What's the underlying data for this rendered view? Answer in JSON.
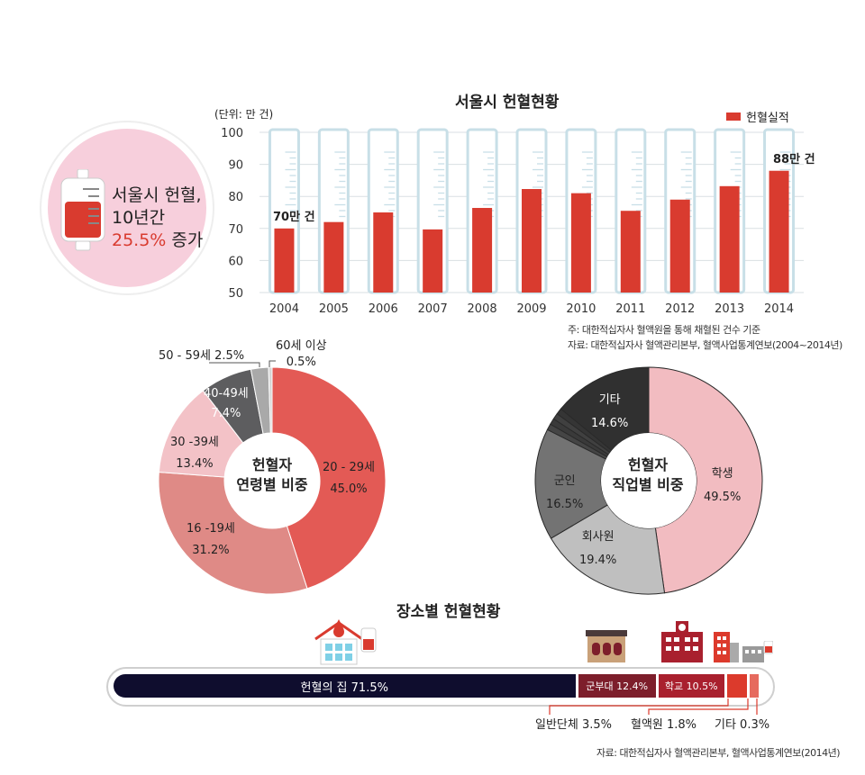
{
  "badge": {
    "line1": "서울시 헌혈,",
    "line2": "10년간",
    "pct": "25.5%",
    "suffix": " 증가"
  },
  "colors": {
    "red": "#d93b2f",
    "pink_circle": "#f7cfdc",
    "navy": "#0f0d2e"
  },
  "chart_data": [
    {
      "type": "bar",
      "title": "서울시 헌혈현황",
      "unit_label": "(단위: 만 건)",
      "legend": [
        "헌혈실적"
      ],
      "legend_position": "top-right",
      "categories": [
        "2004",
        "2005",
        "2006",
        "2007",
        "2008",
        "2009",
        "2010",
        "2011",
        "2012",
        "2013",
        "2014"
      ],
      "values": [
        70,
        72,
        75,
        69.7,
        76.4,
        82.3,
        81,
        75.5,
        79,
        83.2,
        88
      ],
      "yticks": [
        "100",
        "90",
        "80",
        "70",
        "60",
        "50"
      ],
      "ylim": [
        50,
        100
      ],
      "annotations": [
        "70만 건",
        "88만 건"
      ],
      "notes": [
        "주: 대한적십자사 혈액원을 통해 채혈된 건수 기준",
        "자료: 대한적십자사 혈액관리본부, 혈액사업통계연보(2004~2014년)"
      ]
    },
    {
      "type": "pie",
      "title": "헌혈자 연령별 비중",
      "title_lines": [
        "헌혈자",
        "연령별 비중"
      ],
      "slices": [
        {
          "label": "20 - 29세",
          "value": "45.0%",
          "v": 45.0,
          "color": "#e35a55"
        },
        {
          "label": "16 -19세",
          "value": "31.2%",
          "v": 31.2,
          "color": "#df8a86"
        },
        {
          "label": "30 -39세",
          "value": "13.4%",
          "v": 13.4,
          "color": "#f3c2c7"
        },
        {
          "label": "40-49세",
          "value": "7.4%",
          "v": 7.4,
          "color": "#5d5d5f"
        },
        {
          "label": "50 - 59세 2.5%",
          "value": "",
          "v": 2.5,
          "color": "#a9a9a9"
        },
        {
          "label": "60세 이상",
          "value": "0.5%",
          "v": 0.5,
          "color": "#d6d6d6"
        }
      ]
    },
    {
      "type": "pie",
      "title": "헌혈자 직업별 비중",
      "title_lines": [
        "헌혈자",
        "직업별 비중"
      ],
      "slices": [
        {
          "label": "학생",
          "value": "49.5%",
          "v": 49.5,
          "color": "#f2bcc1"
        },
        {
          "label": "회사원",
          "value": "19.4%",
          "v": 19.4,
          "color": "#bfbfbf"
        },
        {
          "label": "군인",
          "value": "16.5%",
          "v": 16.5,
          "color": "#737373"
        },
        {
          "label": "",
          "value": "",
          "v": 0.9,
          "color": "#454545"
        },
        {
          "label": "",
          "value": "",
          "v": 0.9,
          "color": "#3a3a3a"
        },
        {
          "label": "",
          "value": "",
          "v": 0.9,
          "color": "#404040"
        },
        {
          "label": "",
          "value": "",
          "v": 0.9,
          "color": "#353535"
        },
        {
          "label": "기타",
          "value": "14.6%",
          "v": 14.6,
          "color": "#303030"
        }
      ]
    },
    {
      "type": "bar",
      "title": "장소별 헌혈현황",
      "segments": [
        {
          "label": "헌혈의 집 71.5%",
          "v": 71.5,
          "color": "#0f0d2e"
        },
        {
          "label": "군부대 12.4%",
          "v": 12.4,
          "color": "#7d1e2b"
        },
        {
          "label": "학교 10.5%",
          "v": 10.5,
          "color": "#a9202e"
        },
        {
          "label": "일반단체 3.5%",
          "v": 3.5,
          "color": "#dc3a2c"
        },
        {
          "label": "혈액원 1.8%",
          "v": 1.8,
          "color": "#e66a5e"
        },
        {
          "label": "기타 0.3%",
          "v": 0.3,
          "color": "#ef9a90"
        }
      ],
      "source": "자료: 대한적십자사 혈액관리본부, 혈액사업통계연보(2014년)"
    }
  ]
}
